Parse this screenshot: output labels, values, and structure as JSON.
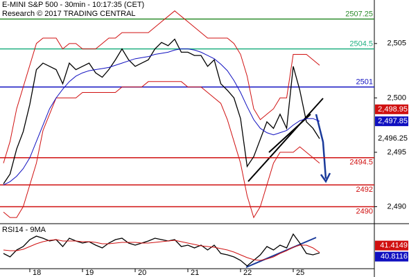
{
  "chart_data": [
    {
      "type": "line",
      "title": "E-MINI S&P 500 - 30min - 10:17:35 (CET)",
      "subtitle": "Research © 2017 TRADING CENTRAL",
      "categories": [
        null,
        null,
        null,
        null,
        "18",
        null,
        null,
        null,
        null,
        null,
        null,
        null,
        "19",
        null,
        null,
        null,
        null,
        null,
        null,
        null,
        "20",
        null,
        null,
        null,
        null,
        null,
        null,
        null,
        "21",
        null,
        null,
        null,
        null,
        null,
        null,
        null,
        "22",
        null,
        null,
        null,
        null,
        null,
        null,
        null,
        "25",
        null,
        null,
        null,
        null
      ],
      "series": [
        {
          "color": "#000000",
          "values": [
            2492.1,
            2493,
            2495.3,
            2496.9,
            2499.4,
            2502.6,
            2503.2,
            2502.9,
            2502.6,
            2501.3,
            2503.2,
            2502.6,
            2502.9,
            2503.2,
            2502.3,
            2501.9,
            2502.6,
            2503.5,
            2504.5,
            2503.5,
            2502.9,
            2503.2,
            2503.5,
            2504.5,
            2505.1,
            2504.8,
            2505.4,
            2504.2,
            2504.2,
            2503.9,
            2503.9,
            2502.9,
            2503.5,
            2501.3,
            2500.7,
            2500,
            2498.1,
            2493.7,
            2494.6,
            2496.2,
            2497.8,
            2497.2,
            2498.5,
            2497.2,
            2502.9,
            2500.7,
            2497.8,
            2497.2,
            2496.25
          ]
        },
        {
          "color": "#d01010",
          "values": [
            2494,
            2496,
            2499,
            2501,
            2503,
            2505,
            2505.5,
            2505.5,
            2505.5,
            2504.5,
            2505,
            2505,
            2504.5,
            2504.5,
            2504.5,
            2505,
            2505.5,
            2505.5,
            2506,
            2506,
            2506,
            2506,
            2506,
            2506.5,
            2507,
            2507.5,
            2508,
            2507.5,
            2507,
            2506.5,
            2506,
            2505.5,
            2505.5,
            2505.5,
            2505.5,
            2505,
            2504,
            2502,
            2499,
            2498,
            2498.5,
            2499,
            2500,
            2500,
            2504,
            2504,
            2504,
            2503.5,
            2503
          ]
        },
        {
          "color": "#d01010",
          "values": [
            2489.5,
            2489,
            2489,
            2490,
            2492,
            2494,
            2497,
            2498.5,
            2500,
            2500,
            2500,
            2500,
            2500.5,
            2500.5,
            2500.5,
            2500.5,
            2500.5,
            2500.5,
            2501,
            2501,
            2501,
            2501,
            2501.5,
            2501.5,
            2501.5,
            2501.5,
            2501.5,
            2501.5,
            2501,
            2501,
            2501,
            2500.5,
            2500,
            2499.5,
            2498,
            2496,
            2494,
            2491,
            2489,
            2490,
            2492,
            2494,
            2495,
            2495,
            2495,
            2495.5,
            2495,
            2494.5,
            2494
          ]
        },
        {
          "color": "#1010c0",
          "values": [
            2492,
            2492.3,
            2492.8,
            2493.5,
            2494.5,
            2496,
            2497.5,
            2499,
            2500,
            2500.8,
            2501.5,
            2502,
            2502.3,
            2502.5,
            2502.6,
            2502.7,
            2502.8,
            2503,
            2503.2,
            2503.4,
            2503.6,
            2503.7,
            2503.8,
            2504,
            2504.1,
            2504.2,
            2504.4,
            2504.5,
            2504.5,
            2504.4,
            2504.2,
            2503.9,
            2503.6,
            2503.1,
            2502.5,
            2501.6,
            2500.5,
            2499.2,
            2498,
            2497.2,
            2496.8,
            2496.6,
            2496.8,
            2497,
            2497.5,
            2497.9,
            2498.1,
            2498.1,
            2497.85
          ]
        }
      ],
      "levels": [
        2507.25,
        2504.5,
        2501,
        2494.5,
        2492,
        2490
      ],
      "level_colors": [
        "#2a8a2a",
        "#20b080",
        "#1010c0",
        "#d01010",
        "#d01010",
        "#d01010"
      ],
      "tags": [
        {
          "value": 2498.95,
          "label": "2,498.95"
        },
        {
          "value": 2497.85,
          "label": "2,497.85"
        },
        {
          "value": 2496.25,
          "label": "2,496.25"
        }
      ],
      "tag_colors": [
        "#d01010",
        "#1010c0",
        "#ffffff"
      ],
      "ylim": [
        2488.5,
        2509
      ],
      "yticks": [
        {
          "value": 2490,
          "label": "2,490"
        },
        {
          "value": 2495,
          "label": "2,495"
        },
        {
          "value": 2500,
          "label": "2,500"
        },
        {
          "value": 2505,
          "label": "2,505"
        }
      ]
    },
    {
      "type": "line",
      "title": "RSI14 - 9MA",
      "series": [
        {
          "color": "#000000",
          "values": [
            40,
            35,
            45,
            50,
            60,
            65,
            62,
            58,
            60,
            50,
            62,
            58,
            55,
            57,
            52,
            48,
            55,
            60,
            62,
            55,
            52,
            55,
            58,
            62,
            60,
            58,
            60,
            50,
            52,
            48,
            52,
            45,
            52,
            40,
            38,
            35,
            30,
            22,
            30,
            38,
            50,
            45,
            52,
            48,
            68,
            55,
            40,
            38,
            40.8116
          ]
        },
        {
          "color": "#d01010",
          "values": [
            45,
            44,
            44,
            46,
            50,
            54,
            57,
            59,
            60,
            58,
            58,
            58,
            57,
            57,
            56,
            54,
            54,
            55,
            56,
            56,
            56,
            55,
            55,
            56,
            57,
            58,
            59,
            57,
            55,
            53,
            51,
            50,
            49,
            47,
            45,
            42,
            38,
            34,
            31,
            30,
            32,
            35,
            40,
            44,
            49,
            52,
            52,
            48,
            41.4149
          ]
        }
      ],
      "tags": [
        41.4149,
        40.8116
      ],
      "tag_colors": [
        "#d01010",
        "#1010c0"
      ],
      "ylim": [
        20,
        80
      ]
    }
  ]
}
